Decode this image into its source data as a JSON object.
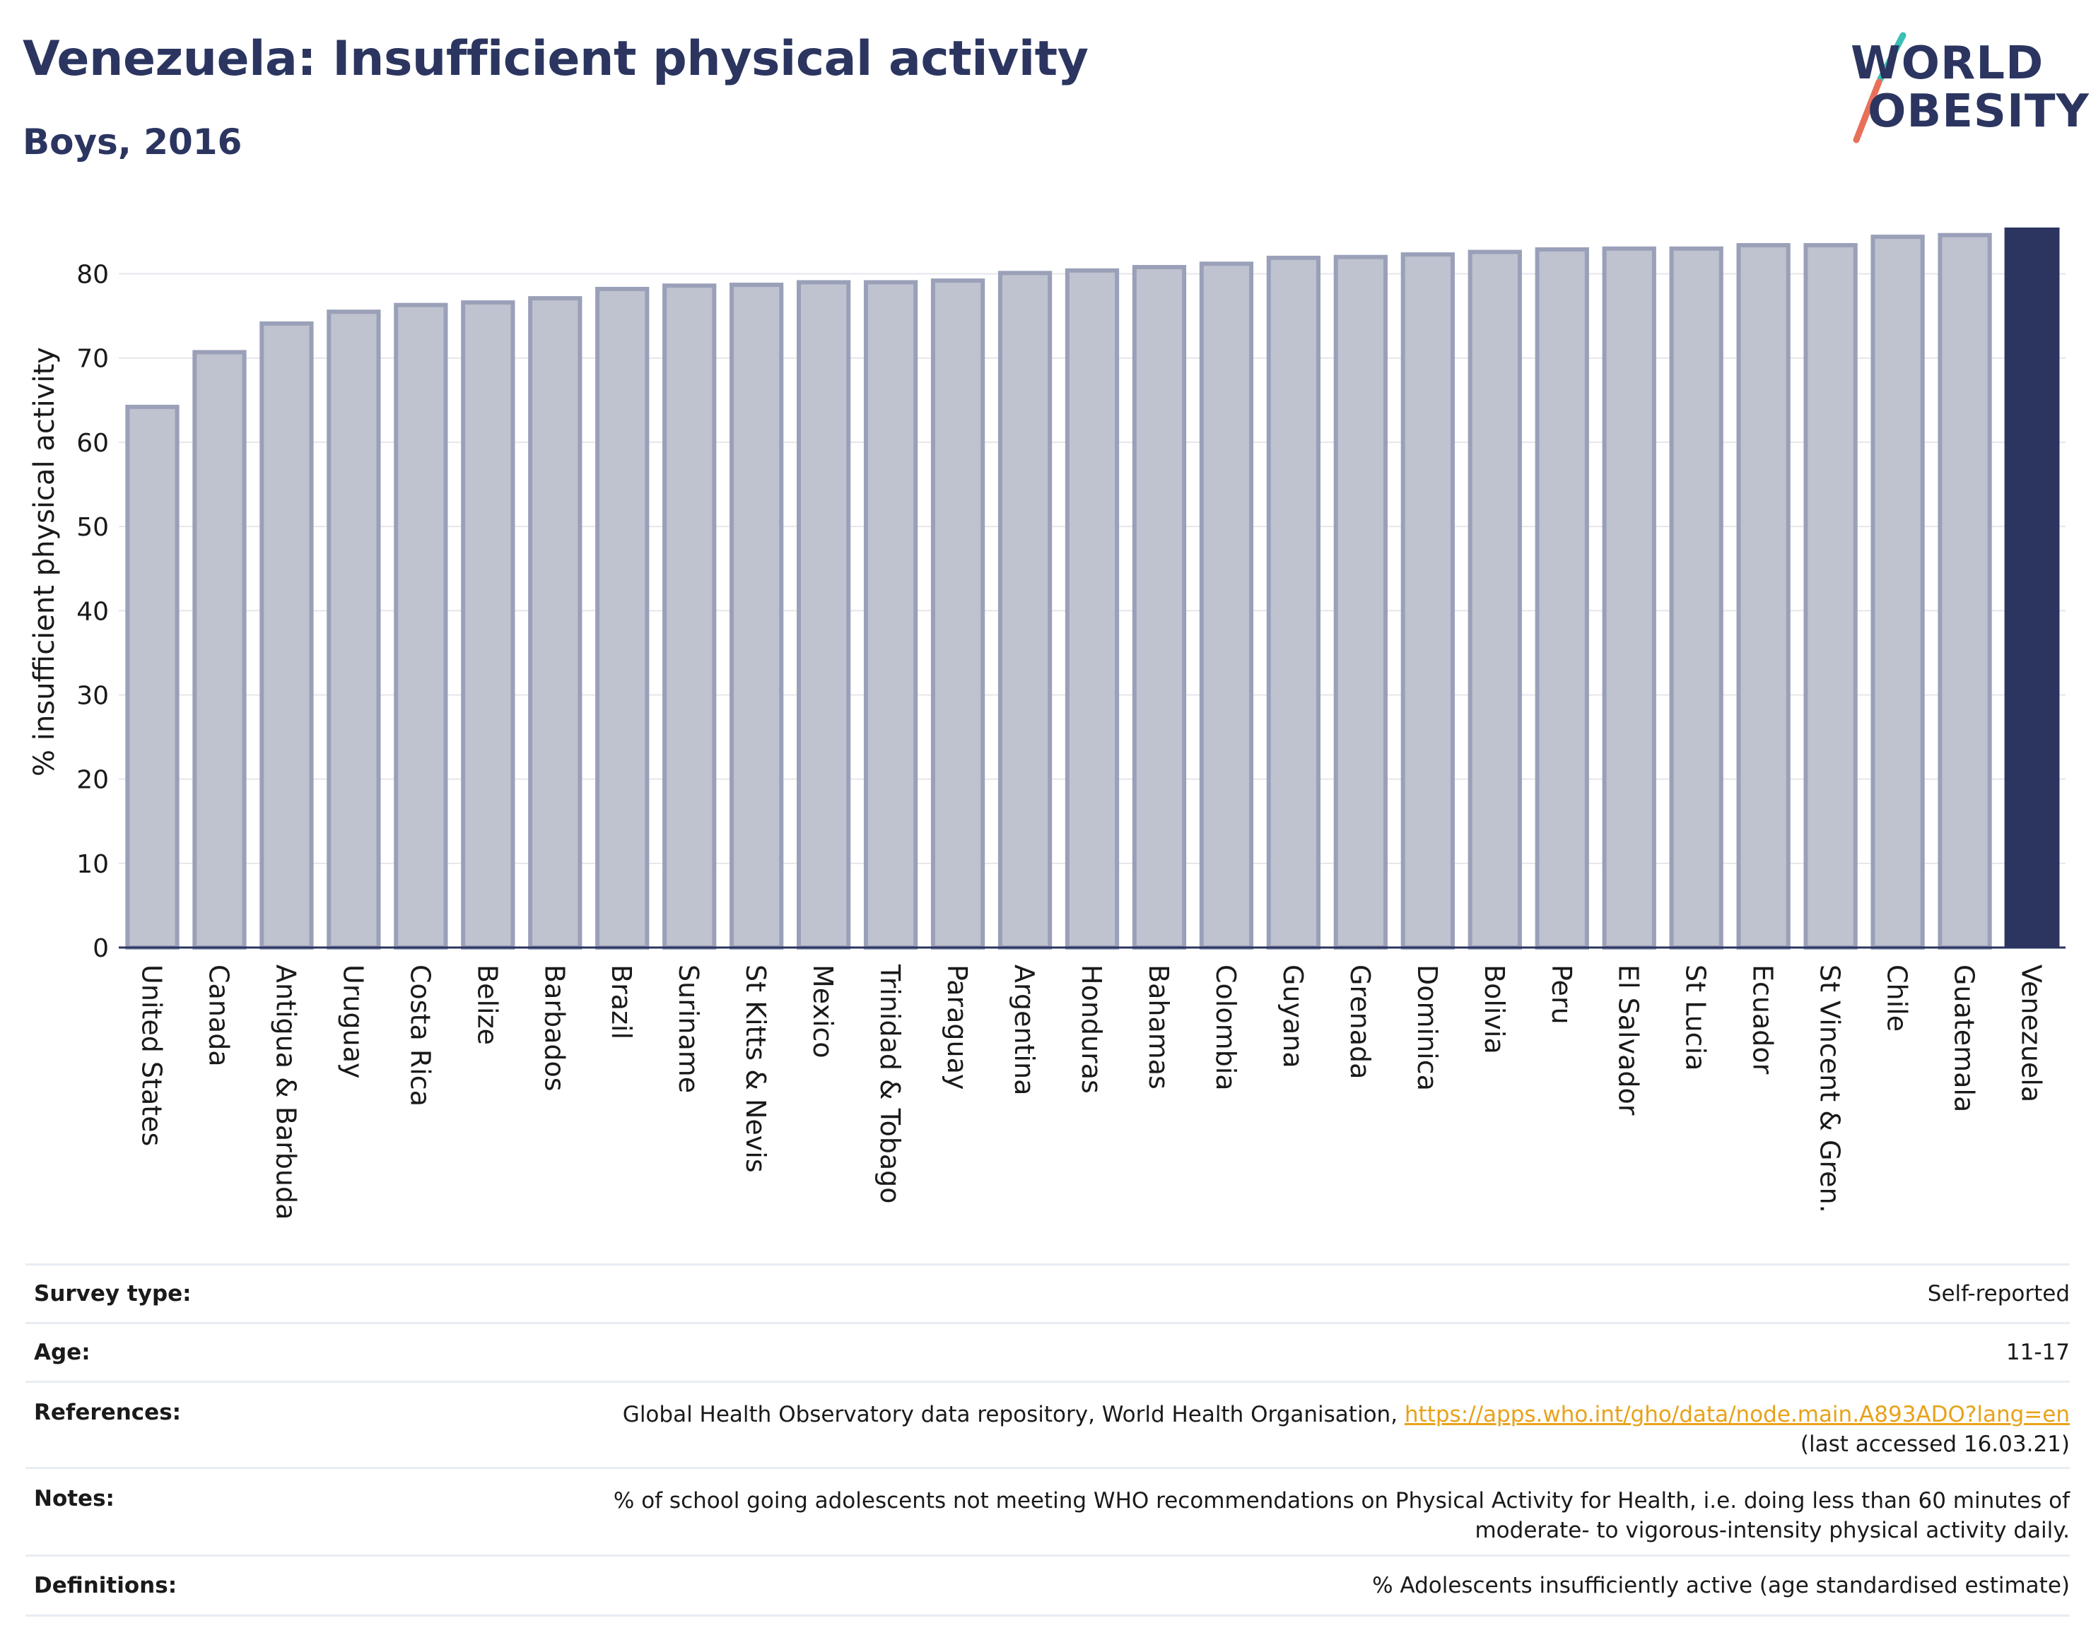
{
  "header": {
    "title": "Venezuela: Insufficient physical activity",
    "subtitle": "Boys, 2016"
  },
  "logo": {
    "line1": "WORLD",
    "line2": "OBESITY",
    "colors": {
      "text": "#2b3560",
      "slash_top": "#3bbfb5",
      "slash_bottom": "#e8705a"
    }
  },
  "chart_data": {
    "type": "bar",
    "ylabel": "% insufficient physical activity",
    "xlabel": "",
    "ylim": [
      0,
      85.5
    ],
    "yticks": [
      0,
      10,
      20,
      30,
      40,
      50,
      60,
      70,
      80
    ],
    "grid": true,
    "categories": [
      "United States",
      "Canada",
      "Antigua & Barbuda",
      "Uruguay",
      "Costa Rica",
      "Belize",
      "Barbados",
      "Brazil",
      "Suriname",
      "St Kitts & Nevis",
      "Mexico",
      "Trinidad & Tobago",
      "Paraguay",
      "Argentina",
      "Honduras",
      "Bahamas",
      "Colombia",
      "Guyana",
      "Grenada",
      "Dominica",
      "Bolivia",
      "Peru",
      "El Salvador",
      "St Lucia",
      "Ecuador",
      "St Vincent & Gren.",
      "Chile",
      "Guatemala",
      "Venezuela"
    ],
    "values": [
      64.2,
      70.7,
      74.1,
      75.5,
      76.3,
      76.6,
      77.1,
      78.2,
      78.6,
      78.7,
      79.0,
      79.0,
      79.2,
      80.1,
      80.4,
      80.8,
      81.2,
      81.9,
      82.0,
      82.3,
      82.6,
      82.9,
      83.0,
      83.0,
      83.4,
      83.4,
      84.4,
      84.6,
      85.5
    ],
    "highlight": "Venezuela",
    "colors": {
      "bar": "#bfc2cf",
      "bar_edge": "#9aa0b8",
      "highlight": "#2b3560",
      "grid": "#e6e6ec",
      "axis": "#2b3560"
    }
  },
  "info": {
    "survey_type_label": "Survey type:",
    "survey_type_value": "Self-reported",
    "age_label": "Age:",
    "age_value": "11-17",
    "references_label": "References:",
    "references_text": "Global Health Observatory data repository, World Health Organisation,",
    "references_link": "https://apps.who.int/gho/data/node.main.A893ADO?lang=en",
    "references_accessed": "(last accessed 16.03.21)",
    "notes_label": "Notes:",
    "notes_line1": "% of school going adolescents not meeting WHO recommendations on Physical Activity for Health, i.e. doing less than 60 minutes of",
    "notes_line2": "moderate- to vigorous-intensity physical activity daily.",
    "definitions_label": "Definitions:",
    "definitions_value": "% Adolescents insufficiently active (age standardised estimate)"
  }
}
